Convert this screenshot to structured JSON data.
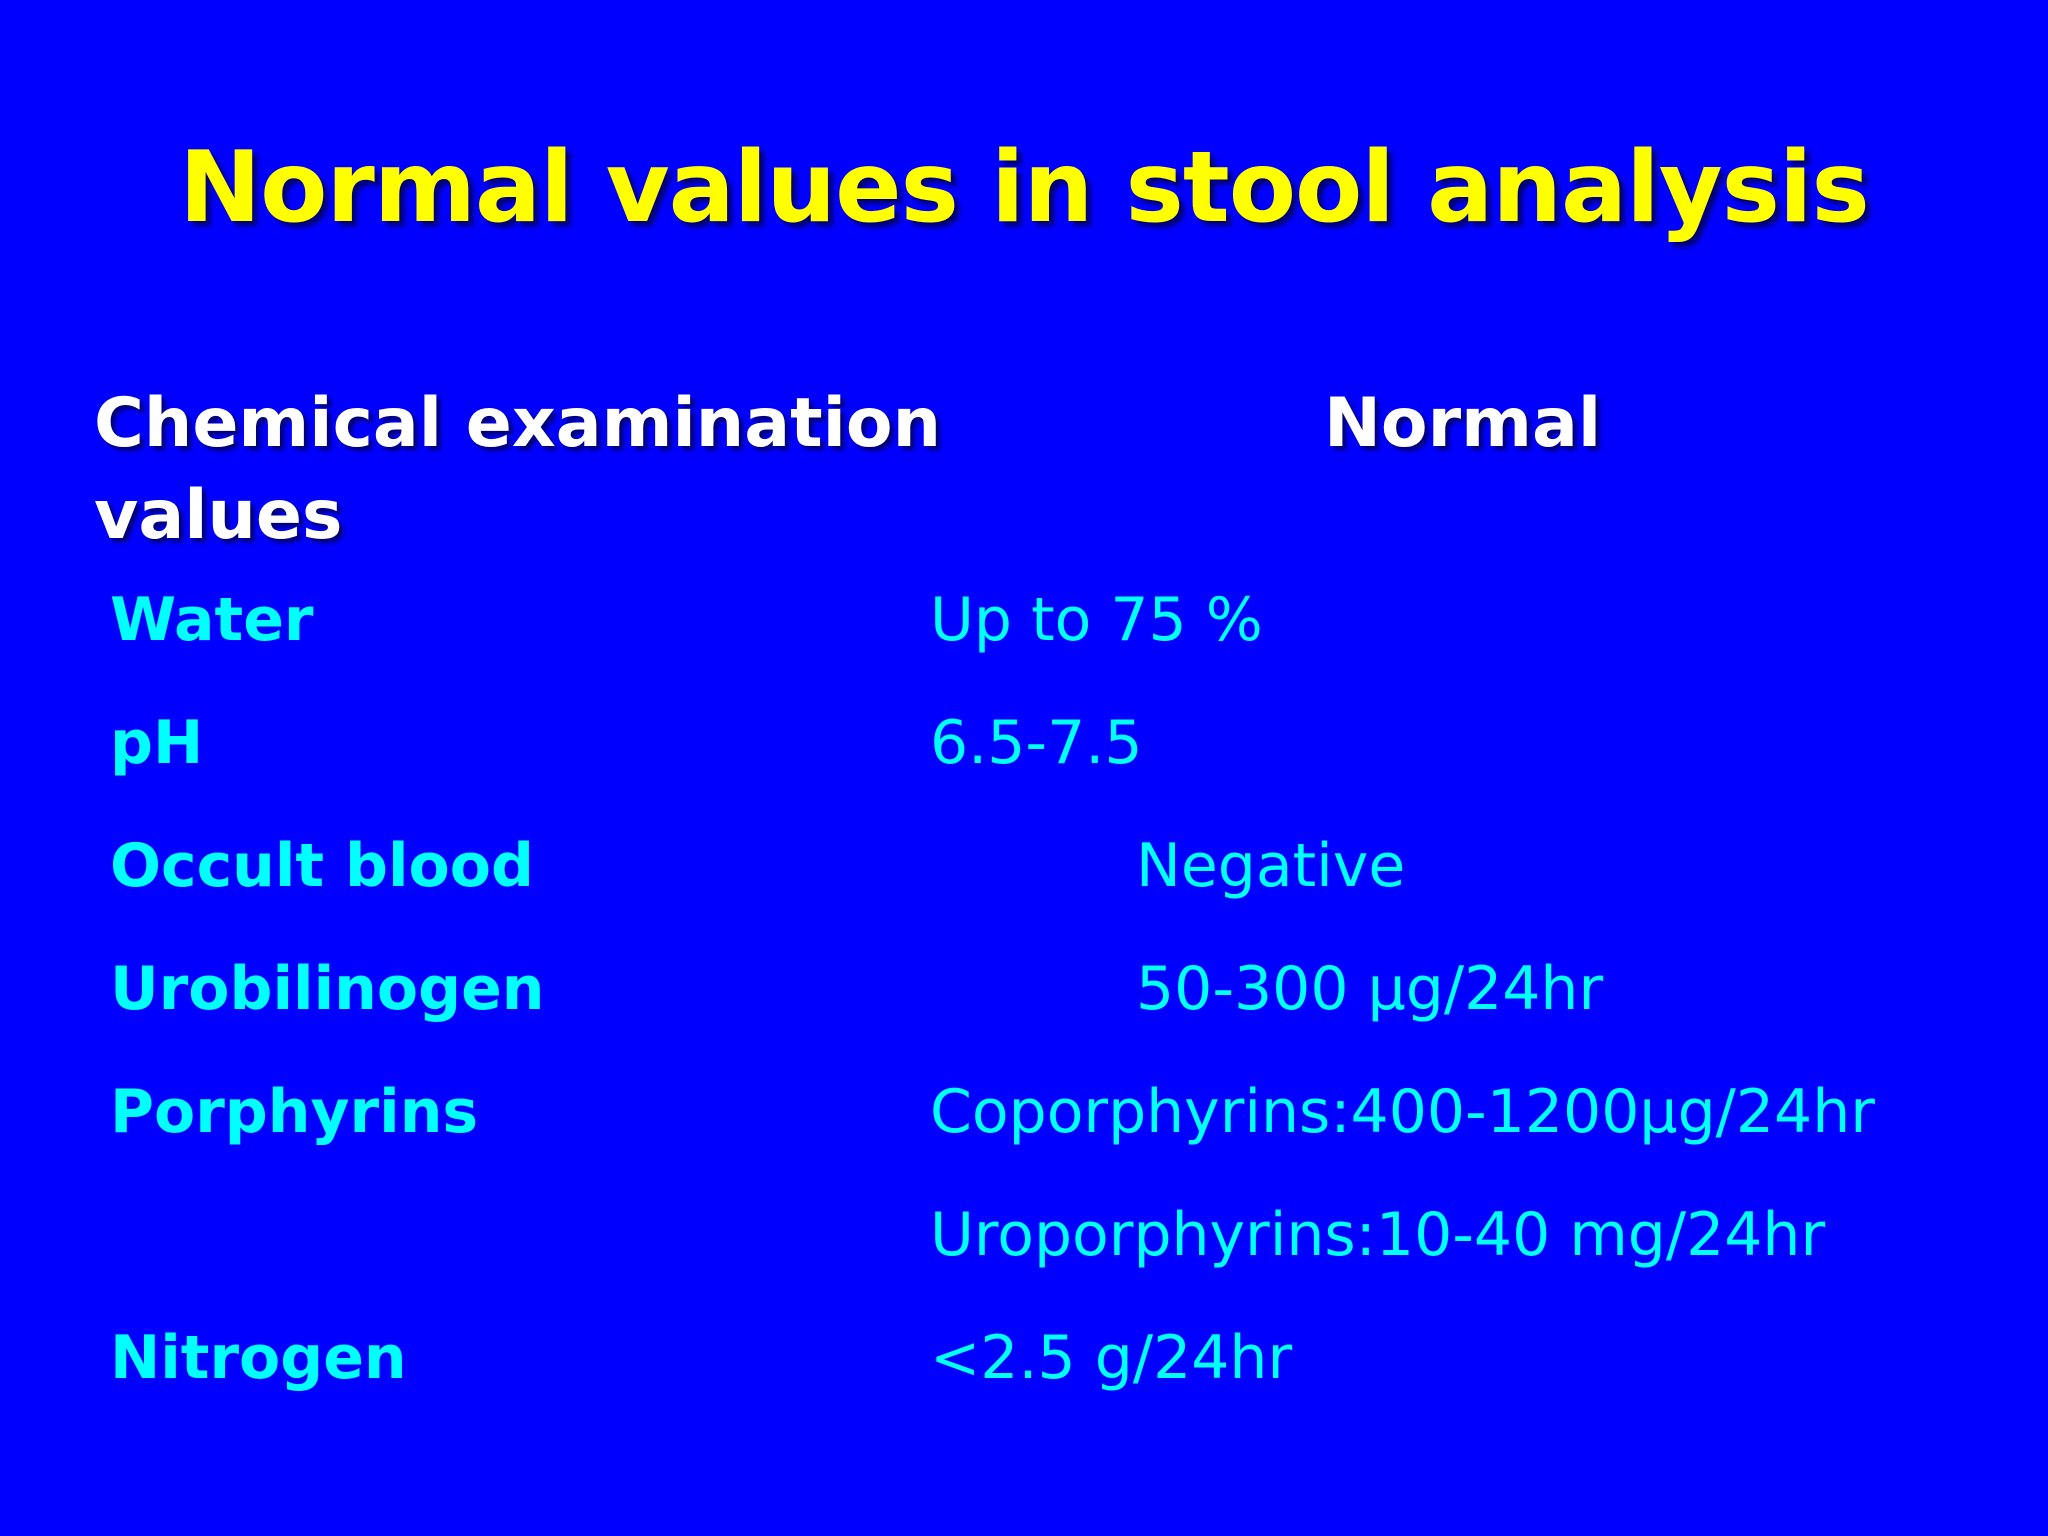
{
  "slide": {
    "title": "Normal values in stool analysis",
    "header": {
      "col1_line1": "Chemical examination",
      "col2": "Normal",
      "col1_line2": "values"
    },
    "rows": [
      {
        "label": "Water",
        "value": "Up to 75 %"
      },
      {
        "label": "pH",
        "value": "6.5-7.5"
      },
      {
        "label": "Occult blood",
        "value": "Negative"
      },
      {
        "label": "Urobilinogen",
        "value": "50-300 μg/24hr"
      },
      {
        "label": "Porphyrins",
        "value": "Coporphyrins:400-1200μg/24hr"
      },
      {
        "label": "",
        "value": "Uroporphyrins:10-40 mg/24hr"
      },
      {
        "label": "Nitrogen",
        "value": "<2.5 g/24hr"
      }
    ]
  },
  "colors": {
    "background": "#0000FF",
    "title": "#FFFF00",
    "header": "#FFFFFF",
    "rows": "#00FFFF"
  }
}
